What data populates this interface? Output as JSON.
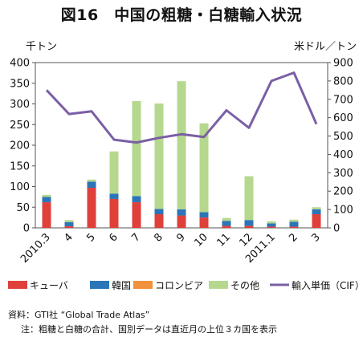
{
  "title": "図16　中国の粗糖・白糖輸入状況",
  "source_note": "資料：GTI社 “Global Trade Atlas”",
  "footnote": "注：粗糖と白糖の合計、国別データは直近月の上位３カ国を表示",
  "chart_data": {
    "type": "bar",
    "stacked": true,
    "categories": [
      "2010.3",
      "4",
      "5",
      "6",
      "7",
      "8",
      "9",
      "10",
      "11",
      "12",
      "2011.1",
      "2",
      "3"
    ],
    "left_axis": {
      "label": "千トン",
      "range": [
        0,
        400
      ],
      "ticks": [
        0,
        50,
        100,
        150,
        200,
        250,
        300,
        350,
        400
      ]
    },
    "right_axis": {
      "label": "米ドル／トン",
      "range": [
        0,
        900
      ],
      "ticks": [
        0,
        100,
        200,
        300,
        400,
        500,
        600,
        700,
        800,
        900
      ]
    },
    "series": [
      {
        "name": "キューバ",
        "type": "bar",
        "axis": "left",
        "color": "#e0403a",
        "values": [
          62,
          4,
          97,
          70,
          62,
          33,
          30,
          25,
          5,
          5,
          3,
          3,
          33
        ]
      },
      {
        "name": "韓国",
        "type": "bar",
        "axis": "left",
        "color": "#2b75b8",
        "values": [
          13,
          10,
          15,
          13,
          15,
          13,
          15,
          13,
          12,
          14,
          8,
          12,
          12
        ]
      },
      {
        "name": "コロンビア",
        "type": "bar",
        "axis": "left",
        "color": "#f2913d",
        "values": [
          0,
          0,
          0,
          0,
          0,
          0,
          0,
          0,
          0,
          0,
          0,
          0,
          0
        ]
      },
      {
        "name": "その他",
        "type": "bar",
        "axis": "left",
        "color": "#b5d88e",
        "values": [
          5,
          5,
          5,
          102,
          230,
          255,
          310,
          215,
          7,
          106,
          5,
          5,
          5
        ]
      },
      {
        "name": "輸入単価（CIF）",
        "type": "line",
        "axis": "right",
        "color": "#7a5fa5",
        "values": [
          750,
          620,
          635,
          480,
          465,
          490,
          510,
          495,
          640,
          545,
          800,
          845,
          565
        ]
      }
    ],
    "legend_position": "bottom",
    "grid": false
  }
}
